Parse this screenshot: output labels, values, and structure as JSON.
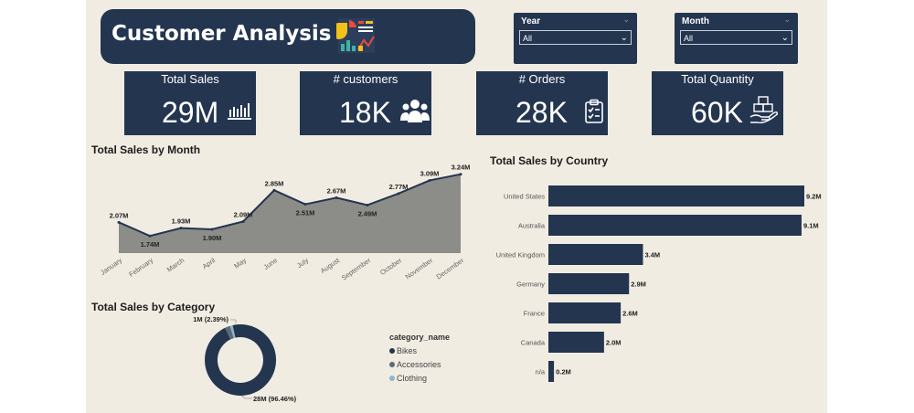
{
  "header": {
    "title": "Customer Analysis",
    "icon": "dashboard-icon"
  },
  "filters": {
    "year": {
      "label": "Year",
      "value": "All"
    },
    "month": {
      "label": "Month",
      "value": "All"
    }
  },
  "kpis": [
    {
      "label": "Total Sales",
      "value": "29M",
      "icon": "bar-chart-icon"
    },
    {
      "label": "# customers",
      "value": "18K",
      "icon": "users-icon"
    },
    {
      "label": "# Orders",
      "value": "28K",
      "icon": "clipboard-icon"
    },
    {
      "label": "Total Quantity",
      "value": "60K",
      "icon": "boxes-hand-icon"
    }
  ],
  "colors": {
    "navy": "#243550",
    "canvas": "#f1ece2",
    "area": "#8c8c88",
    "accessories": "#5b6b7a",
    "clothing": "#8db5cc"
  },
  "chart_data": [
    {
      "type": "area",
      "title": "Total Sales by Month",
      "categories": [
        "January",
        "February",
        "March",
        "April",
        "May",
        "June",
        "July",
        "August",
        "September",
        "October",
        "November",
        "December"
      ],
      "values": [
        2.07,
        1.74,
        1.93,
        1.9,
        2.09,
        2.85,
        2.51,
        2.67,
        2.49,
        2.77,
        3.09,
        3.24
      ],
      "labels": [
        "2.07M",
        "1.74M",
        "1.93M",
        "1.90M",
        "2.09M",
        "2.85M",
        "2.51M",
        "2.67M",
        "2.49M",
        "2.77M",
        "3.09M",
        "3.24M"
      ]
    },
    {
      "type": "bar",
      "orientation": "horizontal",
      "title": "Total Sales by Country",
      "categories": [
        "United States",
        "Australia",
        "United Kingdom",
        "Germany",
        "France",
        "Canada",
        "n/a"
      ],
      "values": [
        9.2,
        9.1,
        3.4,
        2.9,
        2.6,
        2.0,
        0.2
      ],
      "labels": [
        "9.2M",
        "9.1M",
        "3.4M",
        "2.9M",
        "2.6M",
        "2.0M",
        "0.2M"
      ]
    },
    {
      "type": "pie",
      "title": "Total Sales by Category",
      "legend_title": "category_name",
      "categories": [
        "Bikes",
        "Accessories",
        "Clothing"
      ],
      "values": [
        96.46,
        2.39,
        1.15
      ],
      "labels": [
        "28M (96.46%)",
        "1M (2.39%)",
        ""
      ]
    }
  ]
}
